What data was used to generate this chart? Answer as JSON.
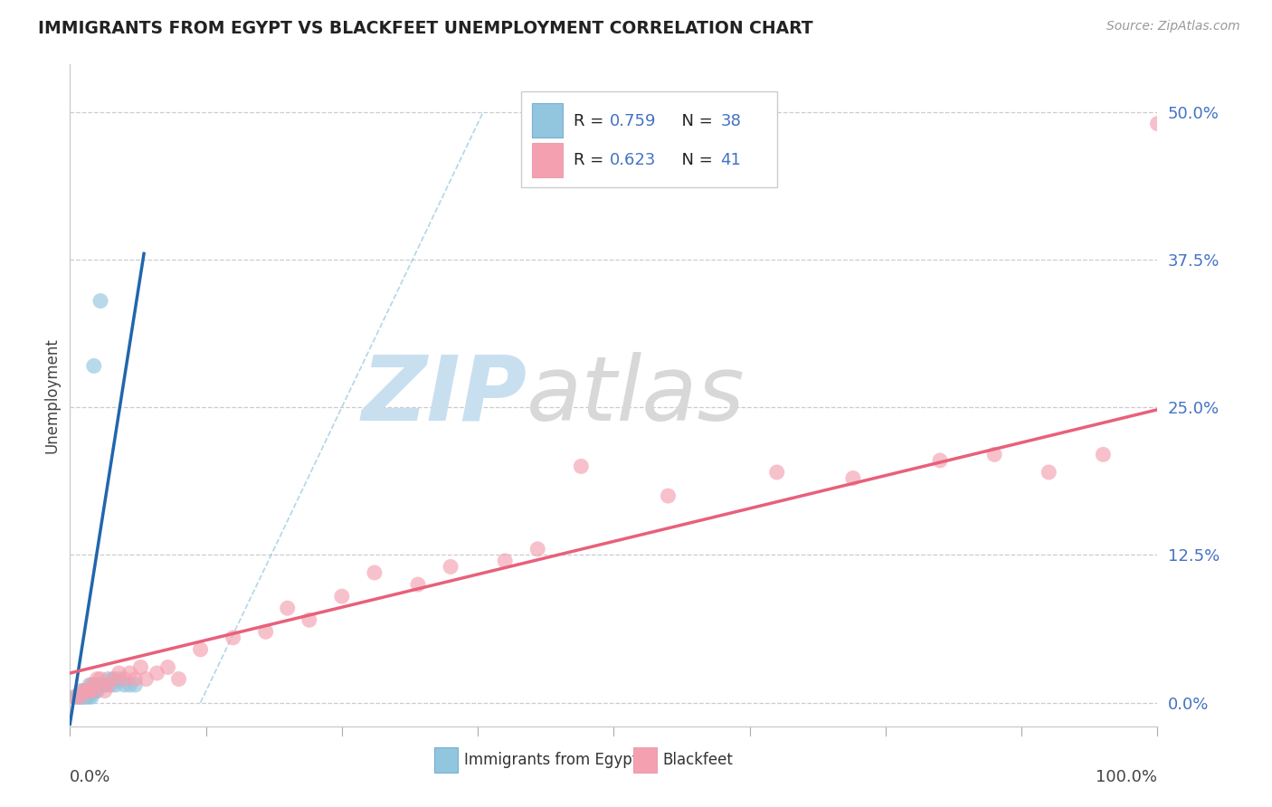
{
  "title": "IMMIGRANTS FROM EGYPT VS BLACKFEET UNEMPLOYMENT CORRELATION CHART",
  "source": "Source: ZipAtlas.com",
  "ylabel": "Unemployment",
  "y_tick_labels": [
    "0.0%",
    "12.5%",
    "25.0%",
    "37.5%",
    "50.0%"
  ],
  "y_tick_values": [
    0.0,
    0.125,
    0.25,
    0.375,
    0.5
  ],
  "xlim": [
    0.0,
    1.0
  ],
  "ylim": [
    -0.02,
    0.54
  ],
  "blue_color": "#92c5de",
  "pink_color": "#f4a0b0",
  "blue_line_color": "#2166ac",
  "pink_line_color": "#e8607a",
  "blue_dash_color": "#92c5de",
  "watermark_zip": "ZIP",
  "watermark_atlas": "atlas",
  "blue_scatter_x": [
    0.005,
    0.007,
    0.008,
    0.009,
    0.01,
    0.01,
    0.01,
    0.012,
    0.013,
    0.014,
    0.015,
    0.015,
    0.016,
    0.017,
    0.018,
    0.018,
    0.019,
    0.02,
    0.02,
    0.021,
    0.022,
    0.023,
    0.024,
    0.025,
    0.026,
    0.028,
    0.03,
    0.032,
    0.035,
    0.038,
    0.04,
    0.042,
    0.045,
    0.05,
    0.055,
    0.06,
    0.022,
    0.028
  ],
  "blue_scatter_y": [
    0.005,
    0.005,
    0.005,
    0.005,
    0.005,
    0.005,
    0.01,
    0.005,
    0.005,
    0.01,
    0.005,
    0.01,
    0.005,
    0.01,
    0.005,
    0.015,
    0.01,
    0.005,
    0.01,
    0.015,
    0.01,
    0.015,
    0.01,
    0.01,
    0.015,
    0.015,
    0.015,
    0.015,
    0.02,
    0.015,
    0.02,
    0.015,
    0.02,
    0.015,
    0.015,
    0.015,
    0.285,
    0.34
  ],
  "pink_scatter_x": [
    0.005,
    0.01,
    0.012,
    0.015,
    0.018,
    0.02,
    0.022,
    0.025,
    0.028,
    0.032,
    0.035,
    0.04,
    0.045,
    0.05,
    0.055,
    0.06,
    0.065,
    0.07,
    0.08,
    0.09,
    0.1,
    0.12,
    0.15,
    0.18,
    0.2,
    0.22,
    0.25,
    0.28,
    0.32,
    0.35,
    0.4,
    0.43,
    0.47,
    0.55,
    0.65,
    0.72,
    0.8,
    0.85,
    0.9,
    0.95,
    1.0
  ],
  "pink_scatter_y": [
    0.005,
    0.005,
    0.01,
    0.01,
    0.01,
    0.015,
    0.01,
    0.02,
    0.02,
    0.01,
    0.015,
    0.02,
    0.025,
    0.02,
    0.025,
    0.02,
    0.03,
    0.02,
    0.025,
    0.03,
    0.02,
    0.045,
    0.055,
    0.06,
    0.08,
    0.07,
    0.09,
    0.11,
    0.1,
    0.115,
    0.12,
    0.13,
    0.2,
    0.175,
    0.195,
    0.19,
    0.205,
    0.21,
    0.195,
    0.21,
    0.49
  ],
  "blue_line_x0": 0.0,
  "blue_line_y0": -0.018,
  "blue_line_x1": 0.068,
  "blue_line_y1": 0.38,
  "pink_line_x0": 0.0,
  "pink_line_y0": 0.025,
  "pink_line_x1": 1.0,
  "pink_line_y1": 0.248,
  "dash_line_x0": 0.12,
  "dash_line_y0": 0.0,
  "dash_line_x1": 0.38,
  "dash_line_y1": 0.5
}
